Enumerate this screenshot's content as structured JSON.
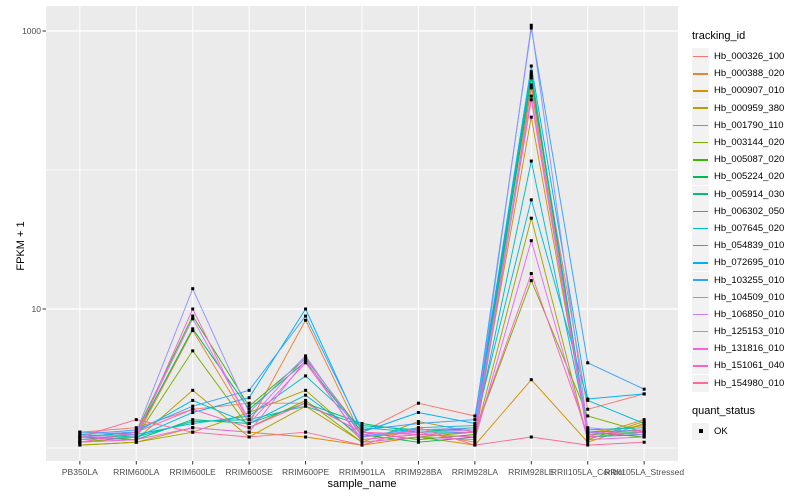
{
  "figure": {
    "background": "#FFFFFF",
    "panel_background": "#EBEBEB",
    "gridline_color": "#FFFFFF",
    "tick_color": "#333333",
    "tick_label_color": "#4D4D4D"
  },
  "chart_data": {
    "type": "line",
    "title": "",
    "xlabel": "sample_name",
    "ylabel": "FPKM + 1",
    "y_scale": "log10",
    "legend_position": "right",
    "grid": "major-and-minor-white-on-gray",
    "point_shape": "small-black-square",
    "y_ticks": [
      {
        "label": "1000",
        "value": 1000
      },
      {
        "label": "10",
        "value": 10
      }
    ],
    "y_minor_gridlines": [
      1,
      100
    ],
    "ylim": [
      0.85,
      1500
    ],
    "categories": [
      "PB350LA",
      "RRIM600LA",
      "RRIM600LE",
      "RRIM600SE",
      "RRIM600PE",
      "RRIM901LA",
      "RRIM928BA",
      "RRIM928LA",
      "RRIM928LE",
      "RRII105LA_Control",
      "RRII105LA_Stressed"
    ],
    "series": [
      {
        "name": "Hb_000326_100",
        "color": "#F8766D",
        "values": [
          1.3,
          1.4,
          1.9,
          2.1,
          2.1,
          1.3,
          2.1,
          1.7,
          410,
          1.9,
          2.45
        ]
      },
      {
        "name": "Hb_000388_020",
        "color": "#EA8331",
        "values": [
          1.1,
          1.2,
          7.0,
          1.5,
          8.3,
          1.2,
          1.3,
          1.1,
          390,
          1.2,
          1.6
        ]
      },
      {
        "name": "Hb_000907_010",
        "color": "#D89000",
        "values": [
          1.05,
          1.1,
          1.4,
          1.3,
          1.2,
          1.05,
          1.2,
          1.05,
          3.1,
          1.1,
          1.5
        ]
      },
      {
        "name": "Hb_000959_380",
        "color": "#C09B00",
        "values": [
          1.1,
          1.15,
          2.6,
          1.2,
          2.0,
          1.1,
          1.55,
          1.3,
          240,
          1.3,
          1.45
        ]
      },
      {
        "name": "Hb_001790_110",
        "color": "#A3A500",
        "values": [
          1.05,
          1.1,
          1.3,
          1.8,
          2.6,
          1.15,
          1.25,
          1.2,
          45,
          1.15,
          1.55
        ]
      },
      {
        "name": "Hb_003144_020",
        "color": "#7CAE00",
        "values": [
          1.1,
          1.2,
          5.0,
          1.4,
          2.2,
          1.1,
          1.2,
          1.3,
          16,
          1.7,
          1.3
        ]
      },
      {
        "name": "Hb_005087_020",
        "color": "#39B600",
        "values": [
          1.2,
          1.3,
          8.9,
          2.0,
          4.4,
          1.3,
          1.15,
          1.25,
          480,
          1.3,
          1.2
        ]
      },
      {
        "name": "Hb_005224_020",
        "color": "#00BB4E",
        "values": [
          1.15,
          1.25,
          7.2,
          1.9,
          4.2,
          1.25,
          1.1,
          1.2,
          460,
          1.25,
          1.3
        ]
      },
      {
        "name": "Hb_005914_030",
        "color": "#00BF7D",
        "values": [
          1.2,
          1.15,
          1.6,
          1.5,
          2.1,
          1.5,
          1.3,
          1.4,
          510,
          1.2,
          1.25
        ]
      },
      {
        "name": "Hb_006302_050",
        "color": "#00C1A3",
        "values": [
          1.25,
          1.2,
          1.55,
          1.6,
          2.0,
          1.45,
          1.35,
          1.35,
          490,
          1.3,
          1.35
        ]
      },
      {
        "name": "Hb_007645_020",
        "color": "#00BFC4",
        "values": [
          1.3,
          1.25,
          1.5,
          1.7,
          3.3,
          1.4,
          1.3,
          1.3,
          116,
          1.35,
          1.4
        ]
      },
      {
        "name": "Hb_054839_010",
        "color": "#00BAE0",
        "values": [
          1.2,
          1.3,
          2.2,
          1.5,
          2.4,
          1.2,
          1.4,
          1.45,
          61,
          2.2,
          1.5
        ]
      },
      {
        "name": "Hb_072695_010",
        "color": "#00B0F6",
        "values": [
          1.15,
          1.2,
          1.8,
          2.3,
          10.0,
          1.3,
          1.8,
          1.5,
          560,
          2.25,
          2.45
        ]
      },
      {
        "name": "Hb_103255_010",
        "color": "#35A2FF",
        "values": [
          1.25,
          1.35,
          2.0,
          2.6,
          8.9,
          1.35,
          1.5,
          1.6,
          1050,
          4.1,
          2.65
        ]
      },
      {
        "name": "Hb_104509_010",
        "color": "#9590FF",
        "values": [
          1.3,
          1.3,
          14.0,
          1.8,
          4.6,
          1.2,
          1.35,
          1.4,
          1100,
          1.4,
          1.3
        ]
      },
      {
        "name": "Hb_106850_010",
        "color": "#C77CFF",
        "values": [
          1.2,
          1.25,
          8.5,
          1.6,
          4.5,
          1.25,
          1.3,
          1.35,
          340,
          1.3,
          1.25
        ]
      },
      {
        "name": "Hb_125153_010",
        "color": "#E76BF3",
        "values": [
          1.1,
          1.15,
          1.4,
          1.3,
          4.3,
          1.1,
          1.2,
          1.15,
          31,
          1.15,
          1.2
        ]
      },
      {
        "name": "Hb_131816_010",
        "color": "#FA62DB",
        "values": [
          1.15,
          1.2,
          10.0,
          1.5,
          4.1,
          1.15,
          1.25,
          1.2,
          320,
          1.2,
          1.3
        ]
      },
      {
        "name": "Hb_151061_040",
        "color": "#FF62BC",
        "values": [
          1.1,
          1.3,
          1.9,
          1.4,
          2.1,
          1.3,
          1.25,
          1.3,
          18,
          1.25,
          1.35
        ]
      },
      {
        "name": "Hb_154980_010",
        "color": "#FF6A98",
        "values": [
          1.2,
          1.6,
          1.3,
          1.2,
          1.3,
          1.05,
          1.4,
          1.05,
          1.2,
          1.05,
          1.1
        ]
      }
    ]
  },
  "legend": {
    "tracking_title": "tracking_id",
    "quant_title": "quant_status",
    "quant_items": [
      {
        "label": "OK"
      }
    ],
    "key_background": "#F2F2F2",
    "point_color": "#000000"
  }
}
